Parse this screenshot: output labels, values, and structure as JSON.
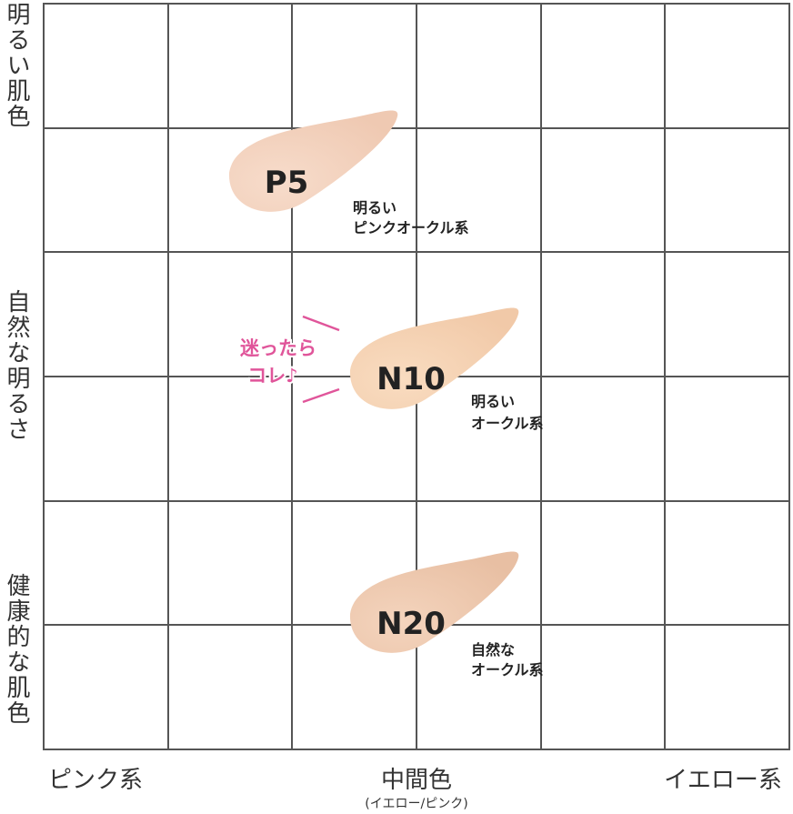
{
  "axis": {
    "top_left": "明るい肌色",
    "middle_left": "自然な明るさ",
    "bottom_left": "健康的な肌色",
    "left": "ピンク系",
    "center": "中間色",
    "center_sub": "(イエロー/ピンク)",
    "right": "イエロー系"
  },
  "swatches": [
    {
      "name": "P5",
      "description": [
        "明るい",
        "ピンクオークル系"
      ]
    },
    {
      "name": "N10",
      "description": [
        "明るい",
        "オークル系"
      ]
    },
    {
      "name": "N20",
      "description": [
        "自然な",
        "オークル系"
      ]
    }
  ],
  "callout": [
    "迷ったら",
    "コレ♪"
  ]
}
